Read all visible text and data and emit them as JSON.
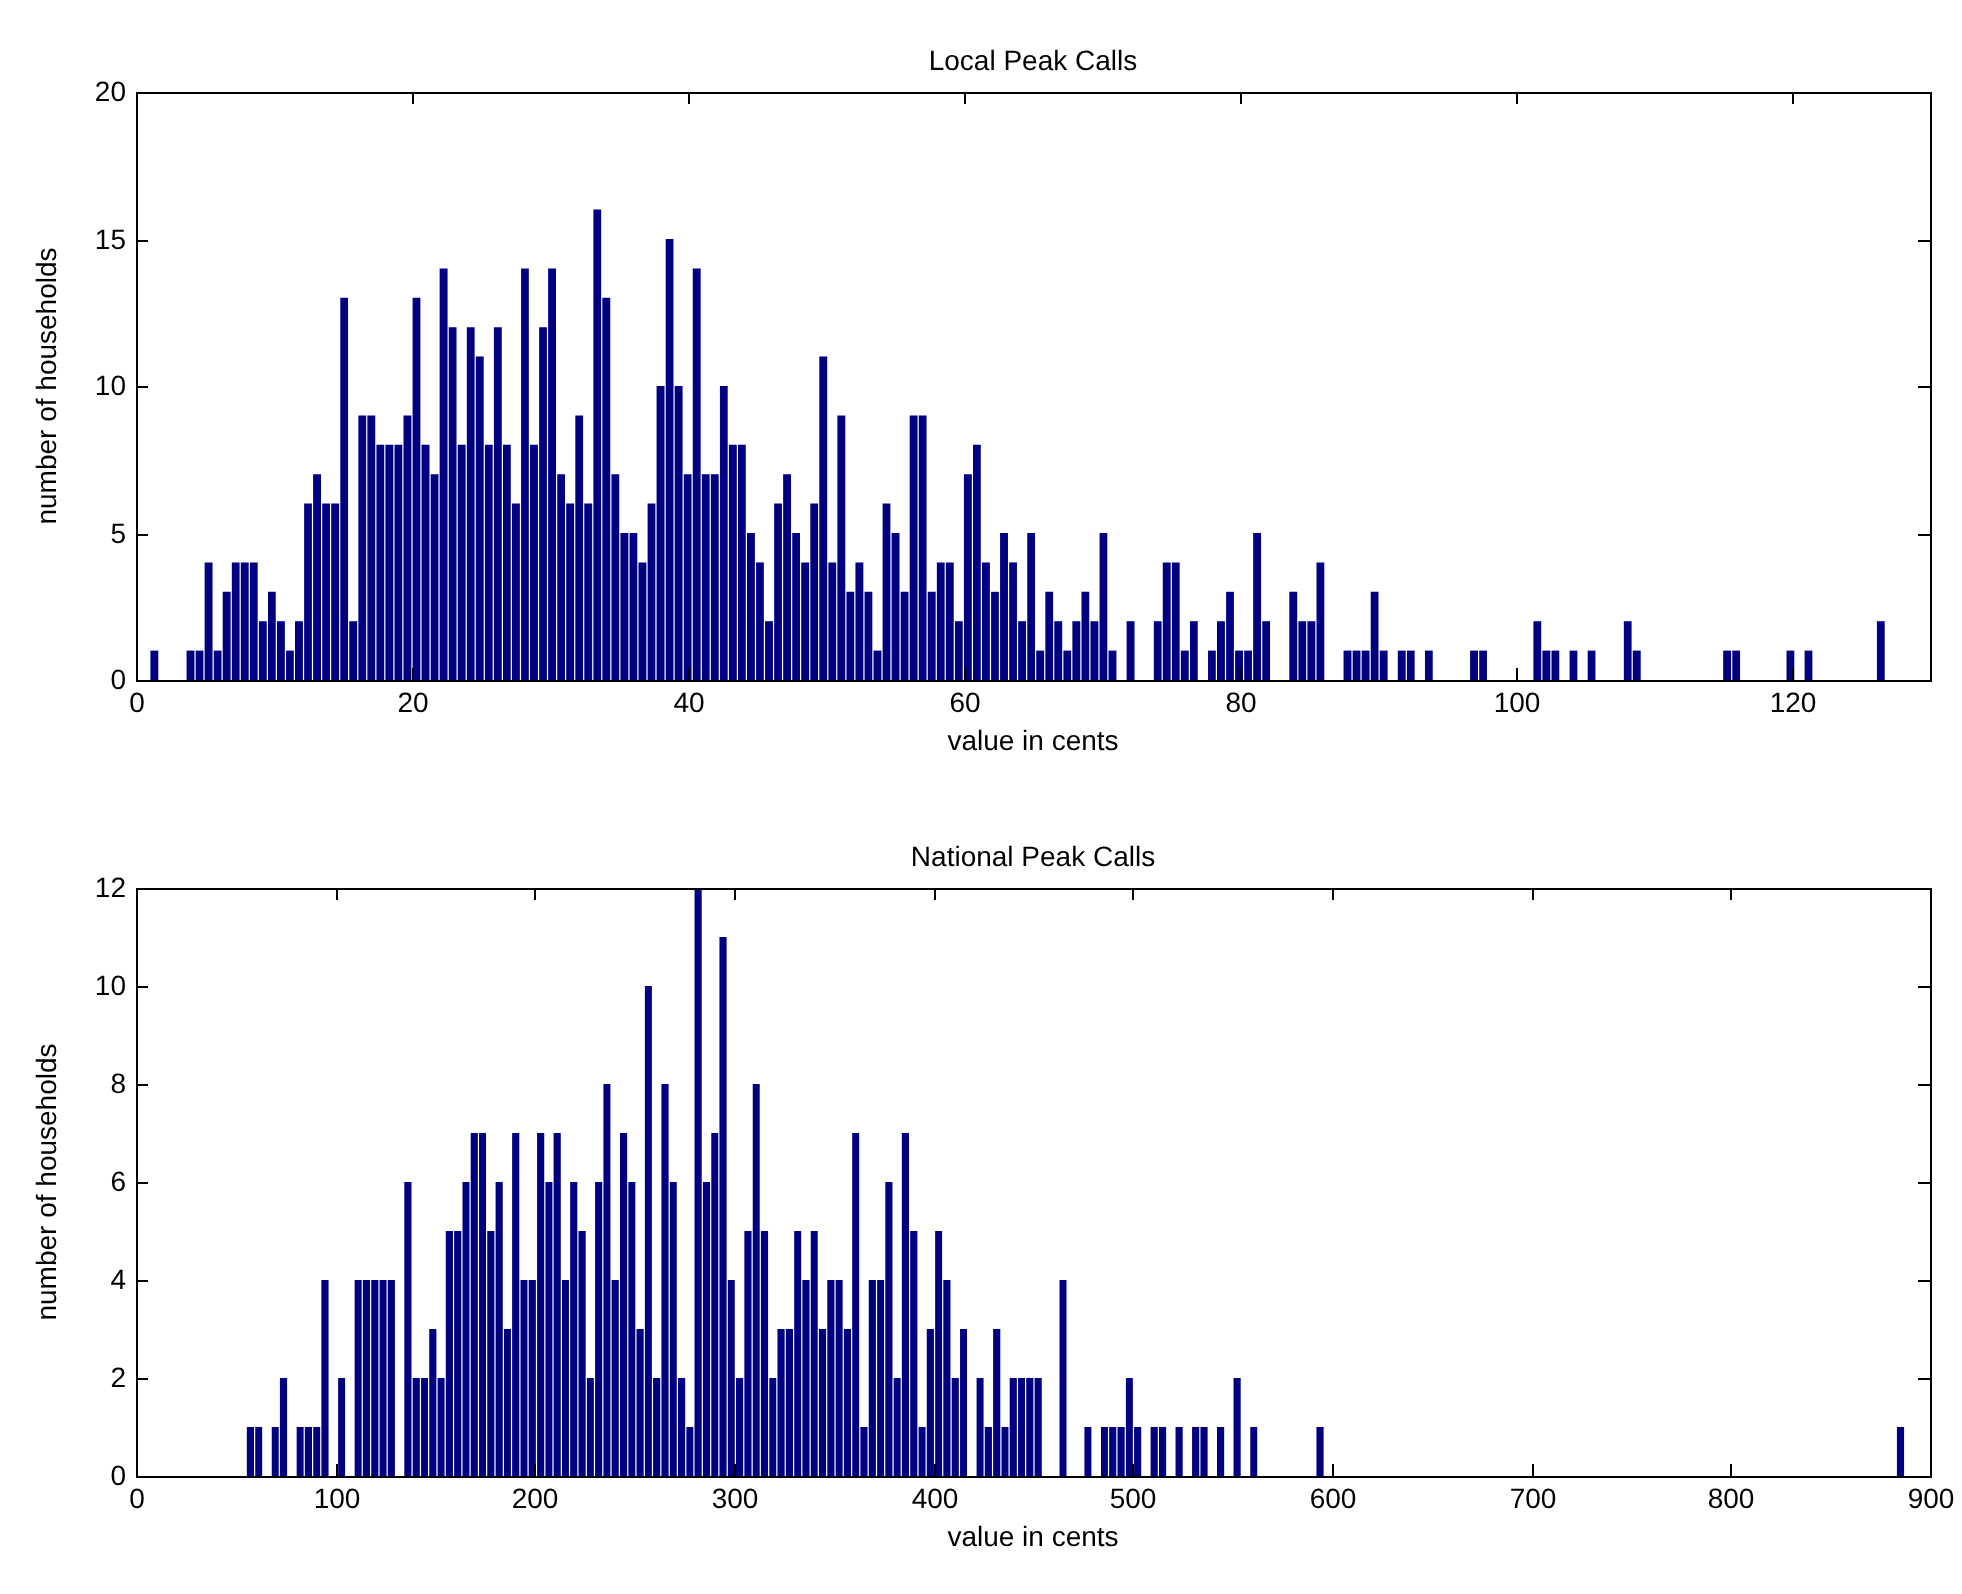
{
  "chart_data": [
    {
      "type": "histogram",
      "title": "Local Peak Calls",
      "xlabel": "value in cents",
      "ylabel": "number of households",
      "color": "#000080",
      "xlim": [
        0,
        130
      ],
      "xticks": [
        0,
        20,
        40,
        60,
        80,
        100,
        120
      ],
      "ylim": [
        0,
        20
      ],
      "yticks": [
        0,
        5,
        10,
        15,
        20
      ],
      "bins": [
        1,
        1.66,
        2.31,
        2.97,
        3.62,
        4.28,
        4.93,
        5.59,
        6.24,
        6.9,
        7.55,
        8.21,
        8.86,
        9.52,
        10.17,
        10.83,
        11.48,
        12.14,
        12.79,
        13.45,
        14.1,
        14.76,
        15.41,
        16.07,
        16.72,
        17.38,
        18.03,
        18.69,
        19.34,
        20,
        20.65,
        21.31,
        21.96,
        22.62,
        23.27,
        23.93,
        24.58,
        25.24,
        25.89,
        26.55,
        27.2,
        27.86,
        28.51,
        29.17,
        29.82,
        30.48,
        31.13,
        31.79,
        32.44,
        33.1,
        33.75,
        34.41,
        35.06,
        35.72,
        36.37,
        37.03,
        37.68,
        38.34,
        38.99,
        39.65,
        40.3,
        40.96,
        41.61,
        42.27,
        42.92,
        43.58,
        44.23,
        44.89,
        45.54,
        46.2,
        46.85,
        47.51,
        48.16,
        48.82,
        49.47,
        50.13,
        50.78,
        51.44,
        52.09,
        52.75,
        53.4,
        54.06,
        54.71,
        55.37,
        56.02,
        56.68,
        57.33,
        57.99,
        58.64,
        59.3,
        59.95,
        60.61,
        61.26,
        61.92,
        62.57,
        63.23,
        63.88,
        64.54,
        65.19,
        65.85,
        66.5,
        67.16,
        67.81,
        68.47,
        69.12,
        69.78,
        70.43,
        71.09,
        71.74,
        72.4,
        73.05,
        73.71,
        74.36,
        75.02,
        75.67,
        76.33,
        76.98,
        77.64,
        78.29,
        78.95,
        79.6,
        80.26,
        80.91,
        81.57,
        82.22,
        82.88,
        83.53,
        84.19,
        84.84,
        85.5,
        86.15,
        86.81,
        87.46,
        88.12,
        88.77,
        89.43,
        90.08,
        90.74,
        91.39,
        92.05,
        92.7,
        93.36,
        94.01,
        94.67,
        95.32,
        95.98,
        96.63,
        97.29,
        97.94,
        98.6,
        99.25,
        99.91,
        100.56,
        101.22,
        101.87,
        102.53,
        103.18,
        103.84,
        104.49,
        105.15,
        105.8,
        106.46,
        107.11,
        107.77,
        108.42,
        109.08,
        109.73,
        110.39,
        111.04,
        111.7,
        112.35,
        113.01,
        113.66,
        114.32,
        114.97,
        115.63,
        116.28,
        116.94,
        117.59,
        118.25,
        118.9,
        119.56,
        120.21,
        120.87,
        121.52,
        122.18,
        122.83,
        123.49,
        124.14,
        124.8,
        125.45,
        126.11,
        126.76
      ],
      "values": [
        1,
        0,
        0,
        0,
        1,
        1,
        4,
        1,
        3,
        4,
        4,
        4,
        2,
        3,
        2,
        1,
        2,
        6,
        7,
        6,
        6,
        13,
        2,
        9,
        9,
        8,
        8,
        8,
        9,
        13,
        8,
        7,
        14,
        12,
        8,
        12,
        11,
        8,
        12,
        8,
        6,
        14,
        8,
        12,
        14,
        7,
        6,
        9,
        6,
        16,
        13,
        7,
        5,
        5,
        4,
        6,
        10,
        15,
        10,
        7,
        14,
        7,
        7,
        10,
        8,
        8,
        5,
        4,
        2,
        6,
        7,
        5,
        4,
        6,
        11,
        4,
        9,
        3,
        4,
        3,
        1,
        6,
        5,
        3,
        9,
        9,
        3,
        4,
        4,
        2,
        7,
        8,
        4,
        3,
        5,
        4,
        2,
        5,
        1,
        3,
        2,
        1,
        2,
        3,
        2,
        5,
        1,
        0,
        2,
        0,
        0,
        2,
        4,
        4,
        1,
        2,
        0,
        1,
        2,
        3,
        1,
        1,
        5,
        2,
        0,
        0,
        3,
        2,
        2,
        4,
        0,
        0,
        1,
        1,
        1,
        3,
        1,
        0,
        1,
        1,
        0,
        1,
        0,
        0,
        0,
        0,
        1,
        1,
        0,
        0,
        0,
        0,
        0,
        2,
        1,
        1,
        0,
        1,
        0,
        1,
        0,
        0,
        0,
        2,
        1,
        0,
        0,
        0,
        0,
        0,
        0,
        0,
        0,
        0,
        1,
        1,
        0,
        0,
        0,
        0,
        0,
        1,
        0,
        1,
        0,
        0,
        0,
        0,
        0,
        0,
        0,
        2
      ]
    },
    {
      "type": "histogram",
      "title": "National Peak Calls",
      "xlabel": "value in cents",
      "ylabel": "number of households",
      "color": "#000080",
      "xlim": [
        0,
        900
      ],
      "xticks": [
        0,
        100,
        200,
        300,
        400,
        500,
        600,
        700,
        800,
        900
      ],
      "ylim": [
        0,
        12
      ],
      "yticks": [
        0,
        2,
        4,
        6,
        8,
        10,
        12
      ],
      "bins": [
        55.3,
        59.5,
        63.6,
        67.8,
        71.9,
        76.1,
        80.3,
        84.4,
        88.6,
        92.7,
        96.9,
        101.1,
        105.2,
        109.4,
        113.5,
        117.7,
        121.9,
        126.0,
        130.2,
        134.3,
        138.5,
        142.7,
        146.8,
        151.0,
        155.1,
        159.3,
        163.5,
        167.6,
        171.8,
        175.9,
        180.1,
        184.3,
        188.4,
        192.6,
        196.7,
        200.9,
        205.1,
        209.2,
        213.4,
        217.5,
        221.7,
        225.9,
        230.0,
        234.2,
        238.3,
        242.5,
        246.7,
        250.8,
        255.0,
        259.1,
        263.3,
        267.5,
        271.6,
        275.8,
        279.9,
        284.1,
        288.3,
        292.4,
        296.6,
        300.7,
        304.9,
        309.1,
        313.2,
        317.4,
        321.5,
        325.7,
        329.9,
        334.0,
        338.2,
        342.3,
        346.5,
        350.7,
        354.8,
        359.0,
        363.1,
        367.3,
        371.5,
        375.6,
        379.8,
        383.9,
        388.1,
        392.3,
        396.4,
        400.6,
        404.7,
        408.9,
        413.1,
        417.2,
        421.4,
        425.5,
        429.7,
        433.9,
        438.0,
        442.2,
        446.3,
        450.5,
        454.7,
        458.8,
        463.0,
        467.1,
        471.3,
        475.5,
        479.6,
        483.8,
        487.9,
        492.1,
        496.3,
        500.4,
        504.6,
        508.7,
        512.9,
        517.1,
        521.2,
        525.4,
        529.5,
        533.7,
        537.9,
        542.0,
        546.2,
        550.3,
        554.5,
        558.7,
        562.8,
        567.0,
        571.1,
        575.3,
        579.5,
        583.6,
        587.8,
        591.9,
        596.1,
        600.3,
        604.4,
        608.6,
        612.7,
        616.9,
        621.1,
        625.2,
        629.4,
        633.5,
        637.7,
        641.9,
        646.0,
        650.2,
        654.3,
        658.5,
        662.7,
        666.8,
        671.0,
        675.1,
        679.3,
        683.5,
        687.6,
        691.8,
        695.9,
        700.1,
        704.3,
        708.4,
        712.6,
        716.7,
        720.9,
        725.1,
        729.2,
        733.4,
        737.5,
        741.7,
        745.9,
        750.0,
        754.2,
        758.3,
        762.5,
        766.7,
        770.8,
        775.0,
        779.1,
        783.3,
        787.5,
        791.6,
        795.8,
        799.9,
        804.1,
        808.3,
        812.4,
        816.6,
        820.7,
        824.9,
        829.1,
        833.2,
        837.4,
        841.5,
        845.7,
        849.9,
        854.0,
        858.2,
        862.3,
        866.5,
        870.7,
        874.8,
        879.0,
        883.1,
        887.3
      ],
      "values": [
        1,
        1,
        0,
        1,
        2,
        0,
        1,
        1,
        1,
        4,
        0,
        2,
        0,
        4,
        4,
        4,
        4,
        4,
        0,
        6,
        2,
        2,
        3,
        2,
        5,
        5,
        6,
        7,
        7,
        5,
        6,
        3,
        7,
        4,
        4,
        7,
        6,
        7,
        4,
        6,
        5,
        2,
        6,
        8,
        4,
        7,
        6,
        3,
        10,
        2,
        8,
        6,
        2,
        1,
        12,
        6,
        7,
        11,
        4,
        2,
        5,
        8,
        5,
        2,
        3,
        3,
        5,
        4,
        5,
        3,
        4,
        4,
        3,
        7,
        1,
        4,
        4,
        6,
        2,
        7,
        5,
        1,
        3,
        5,
        4,
        2,
        3,
        0,
        2,
        1,
        3,
        1,
        2,
        2,
        2,
        2,
        0,
        0,
        4,
        0,
        0,
        1,
        0,
        1,
        1,
        1,
        2,
        1,
        0,
        1,
        1,
        0,
        1,
        0,
        1,
        1,
        0,
        1,
        0,
        2,
        0,
        1,
        0,
        0,
        0,
        0,
        0,
        0,
        0,
        1,
        0,
        0,
        0,
        0,
        0,
        0,
        0,
        0,
        0,
        0,
        0,
        0,
        0,
        0,
        0,
        0,
        0,
        0,
        0,
        0,
        0,
        0,
        0,
        0,
        0,
        0,
        0,
        0,
        0,
        0,
        0,
        0,
        0,
        0,
        0,
        0,
        0,
        0,
        0,
        0,
        0,
        0,
        0,
        0,
        0,
        0,
        0,
        0,
        0,
        0,
        0,
        0,
        0,
        0,
        0,
        0,
        0,
        0,
        0,
        0,
        0,
        0,
        0,
        0,
        0,
        0,
        0,
        0,
        0,
        1
      ]
    }
  ]
}
